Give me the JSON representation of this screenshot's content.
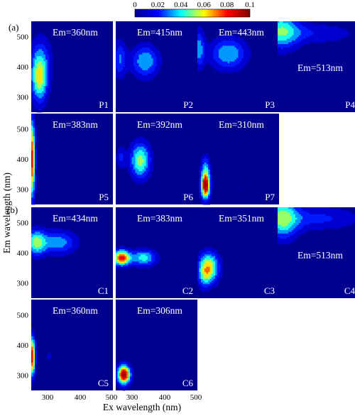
{
  "chart_data": {
    "type": "heatmap",
    "title": "",
    "xlabel": "Ex wavelength (nm)",
    "ylabel": "Em wavelength (nm)",
    "colorbar": {
      "min": 0,
      "max": 0.1,
      "ticks": [
        "0",
        "0.02",
        "0.04",
        "0.06",
        "0.08",
        "0.1"
      ],
      "colors": [
        "#00008f",
        "#0000ff",
        "#00ffff",
        "#ffff00",
        "#ff0000",
        "#800000"
      ]
    },
    "x_ticks": [
      "300",
      "400",
      "500"
    ],
    "y_ticks": [
      "300",
      "400",
      "500"
    ],
    "xlim": [
      250,
      500
    ],
    "ylim": [
      250,
      550
    ],
    "group_labels": [
      "(a)",
      "(b)"
    ],
    "panels": [
      {
        "id": "P1",
        "em_label": "Em=360nm",
        "peaks": [
          {
            "ex": 275,
            "em": 360,
            "sx": 18,
            "sy": 55,
            "amp": 0.055
          },
          {
            "ex": 280,
            "em": 430,
            "sx": 25,
            "sy": 60,
            "amp": 0.02
          }
        ]
      },
      {
        "id": "P2",
        "em_label": "Em=415nm",
        "peaks": [
          {
            "ex": 340,
            "em": 418,
            "sx": 30,
            "sy": 38,
            "amp": 0.04
          },
          {
            "ex": 262,
            "em": 425,
            "sx": 14,
            "sy": 45,
            "amp": 0.03
          }
        ]
      },
      {
        "id": "P3",
        "em_label": "Em=443nm",
        "peaks": [
          {
            "ex": 345,
            "em": 443,
            "sx": 40,
            "sy": 38,
            "amp": 0.04
          },
          {
            "ex": 255,
            "em": 460,
            "sx": 12,
            "sy": 45,
            "amp": 0.035
          }
        ]
      },
      {
        "id": "P4",
        "em_label": "Em=513nm",
        "peaks": [
          {
            "ex": 260,
            "em": 520,
            "sx": 40,
            "sy": 45,
            "amp": 0.045
          },
          {
            "ex": 370,
            "em": 510,
            "sx": 90,
            "sy": 25,
            "amp": 0.018
          }
        ]
      },
      {
        "id": "P5",
        "em_label": "Em=383nm",
        "peaks": [
          {
            "ex": 252,
            "em": 400,
            "sx": 7,
            "sy": 90,
            "amp": 0.085
          }
        ]
      },
      {
        "id": "P6",
        "em_label": "Em=392nm",
        "peaks": [
          {
            "ex": 325,
            "em": 395,
            "sx": 22,
            "sy": 42,
            "amp": 0.055
          },
          {
            "ex": 265,
            "em": 405,
            "sx": 10,
            "sy": 25,
            "amp": 0.022
          }
        ]
      },
      {
        "id": "P7",
        "em_label": "Em=310nm",
        "peaks": [
          {
            "ex": 275,
            "em": 312,
            "sx": 10,
            "sy": 30,
            "amp": 0.1
          },
          {
            "ex": 275,
            "em": 375,
            "sx": 10,
            "sy": 30,
            "amp": 0.03
          },
          {
            "ex": 380,
            "em": 300,
            "sx": 8,
            "sy": 10,
            "amp": 0.01
          }
        ]
      },
      {
        "id": "C1",
        "em_label": "Em=434nm",
        "peaks": [
          {
            "ex": 265,
            "em": 434,
            "sx": 22,
            "sy": 30,
            "amp": 0.05
          },
          {
            "ex": 335,
            "em": 434,
            "sx": 40,
            "sy": 28,
            "amp": 0.035
          }
        ]
      },
      {
        "id": "C2",
        "em_label": "Em=383nm",
        "peaks": [
          {
            "ex": 268,
            "em": 383,
            "sx": 18,
            "sy": 18,
            "amp": 0.085
          },
          {
            "ex": 335,
            "em": 383,
            "sx": 28,
            "sy": 20,
            "amp": 0.045
          }
        ]
      },
      {
        "id": "C3",
        "em_label": "Em=351nm",
        "peaks": [
          {
            "ex": 285,
            "em": 351,
            "sx": 22,
            "sy": 35,
            "amp": 0.065
          },
          {
            "ex": 270,
            "em": 320,
            "sx": 14,
            "sy": 30,
            "amp": 0.02
          }
        ]
      },
      {
        "id": "C4",
        "em_label": "Em=513nm",
        "peaks": [
          {
            "ex": 265,
            "em": 513,
            "sx": 35,
            "sy": 48,
            "amp": 0.05
          },
          {
            "ex": 380,
            "em": 513,
            "sx": 90,
            "sy": 28,
            "amp": 0.022
          }
        ]
      },
      {
        "id": "C5",
        "em_label": "Em=360nm",
        "peaks": [
          {
            "ex": 252,
            "em": 362,
            "sx": 7,
            "sy": 45,
            "amp": 0.09
          },
          {
            "ex": 305,
            "em": 362,
            "sx": 5,
            "sy": 10,
            "amp": 0.02
          }
        ]
      },
      {
        "id": "C6",
        "em_label": "Em=306nm",
        "peaks": [
          {
            "ex": 275,
            "em": 302,
            "sx": 14,
            "sy": 22,
            "amp": 0.1
          }
        ]
      }
    ]
  }
}
